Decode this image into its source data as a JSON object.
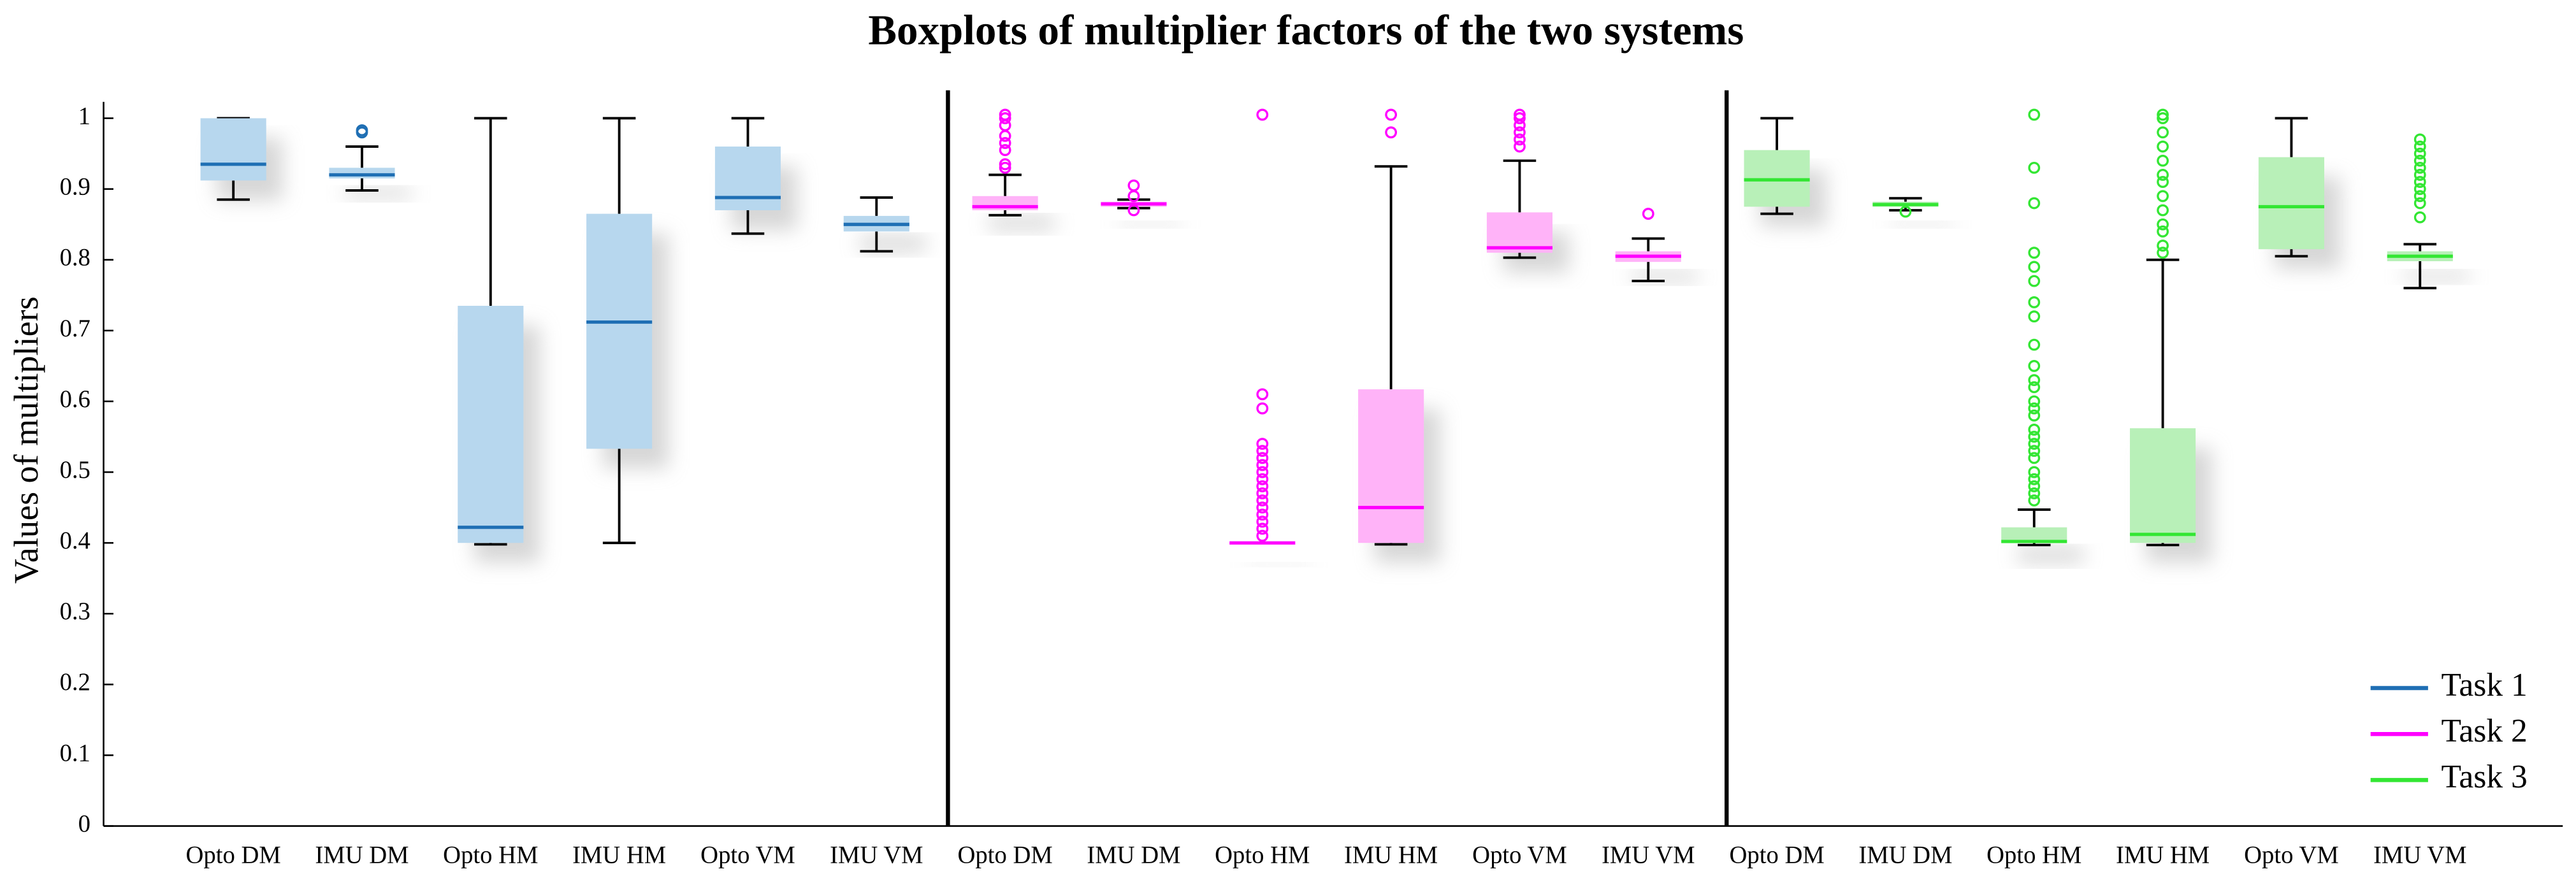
{
  "chart_data": {
    "type": "box",
    "title": "Boxplots of multiplier factors of the two systems",
    "ylabel": "Values of multipliers",
    "categories": [
      "Opto DM",
      "IMU DM",
      "Opto HM",
      "IMU HM",
      "Opto VM",
      "IMU VM",
      "Opto DM",
      "IMU DM",
      "Opto HM",
      "IMU HM",
      "Opto VM",
      "IMU VM",
      "Opto DM",
      "IMU DM",
      "Opto HM",
      "IMU HM",
      "Opto VM",
      "IMU VM"
    ],
    "ylim": [
      0,
      1
    ],
    "yticks": [
      0,
      0.1,
      0.2,
      0.3,
      0.4,
      0.5,
      0.6,
      0.7,
      0.8,
      0.9,
      1
    ],
    "legend": "lower right",
    "series": [
      {
        "name": "Task 1",
        "color": "#1f6fb4",
        "box_color": "#b7d7ee",
        "boxes": [
          {
            "min": 0.885,
            "q1": 0.912,
            "median": 0.935,
            "q3": 1.0,
            "max": 1.0,
            "outliers": []
          },
          {
            "min": 0.898,
            "q1": 0.915,
            "median": 0.92,
            "q3": 0.93,
            "max": 0.96,
            "outliers": [
              0.98,
              0.983
            ]
          },
          {
            "min": 0.398,
            "q1": 0.4,
            "median": 0.422,
            "q3": 0.735,
            "max": 1.0,
            "outliers": []
          },
          {
            "min": 0.4,
            "q1": 0.533,
            "median": 0.712,
            "q3": 0.865,
            "max": 1.0,
            "outliers": []
          },
          {
            "min": 0.837,
            "q1": 0.87,
            "median": 0.888,
            "q3": 0.96,
            "max": 1.0,
            "outliers": []
          },
          {
            "min": 0.812,
            "q1": 0.84,
            "median": 0.85,
            "q3": 0.862,
            "max": 0.888,
            "outliers": []
          }
        ]
      },
      {
        "name": "Task 2",
        "color": "#ff00ff",
        "box_color": "#ffb3f8",
        "boxes": [
          {
            "min": 0.863,
            "q1": 0.87,
            "median": 0.875,
            "q3": 0.89,
            "max": 0.92,
            "outliers": [
              0.93,
              0.935,
              0.955,
              0.965,
              0.975,
              0.99,
              1.0,
              1.005
            ]
          },
          {
            "min": 0.873,
            "q1": 0.875,
            "median": 0.879,
            "q3": 0.882,
            "max": 0.885,
            "outliers": [
              0.87,
              0.89,
              0.905
            ]
          },
          {
            "min": 0.4,
            "q1": 0.4,
            "median": 0.4,
            "q3": 0.4,
            "max": 0.4,
            "outliers": [
              0.41,
              0.42,
              0.43,
              0.44,
              0.45,
              0.46,
              0.47,
              0.48,
              0.49,
              0.5,
              0.51,
              0.52,
              0.53,
              0.54,
              0.59,
              0.61,
              1.005
            ]
          },
          {
            "min": 0.398,
            "q1": 0.4,
            "median": 0.45,
            "q3": 0.617,
            "max": 0.932,
            "outliers": [
              0.98,
              1.005
            ]
          },
          {
            "min": 0.803,
            "q1": 0.81,
            "median": 0.817,
            "q3": 0.867,
            "max": 0.94,
            "outliers": [
              0.96,
              0.97,
              0.98,
              0.99,
              1.0,
              1.005
            ]
          },
          {
            "min": 0.77,
            "q1": 0.797,
            "median": 0.805,
            "q3": 0.812,
            "max": 0.83,
            "outliers": [
              0.865
            ]
          }
        ]
      },
      {
        "name": "Task 3",
        "color": "#33e633",
        "box_color": "#b8f0b8",
        "boxes": [
          {
            "min": 0.865,
            "q1": 0.875,
            "median": 0.913,
            "q3": 0.955,
            "max": 1.0,
            "outliers": []
          },
          {
            "min": 0.87,
            "q1": 0.875,
            "median": 0.878,
            "q3": 0.882,
            "max": 0.887,
            "outliers": [
              0.868
            ]
          },
          {
            "min": 0.397,
            "q1": 0.4,
            "median": 0.402,
            "q3": 0.422,
            "max": 0.447,
            "outliers": [
              0.46,
              0.47,
              0.48,
              0.49,
              0.5,
              0.52,
              0.53,
              0.54,
              0.55,
              0.56,
              0.58,
              0.59,
              0.6,
              0.62,
              0.63,
              0.65,
              0.68,
              0.72,
              0.74,
              0.77,
              0.79,
              0.81,
              0.88,
              0.93,
              1.005
            ]
          },
          {
            "min": 0.397,
            "q1": 0.4,
            "median": 0.412,
            "q3": 0.562,
            "max": 0.8,
            "outliers": [
              0.81,
              0.82,
              0.84,
              0.85,
              0.87,
              0.89,
              0.91,
              0.92,
              0.94,
              0.96,
              0.98,
              1.0,
              1.005
            ]
          },
          {
            "min": 0.805,
            "q1": 0.815,
            "median": 0.875,
            "q3": 0.945,
            "max": 1.0,
            "outliers": []
          },
          {
            "min": 0.76,
            "q1": 0.798,
            "median": 0.805,
            "q3": 0.812,
            "max": 0.822,
            "outliers": [
              0.86,
              0.88,
              0.89,
              0.9,
              0.91,
              0.92,
              0.93,
              0.94,
              0.95,
              0.96,
              0.97
            ]
          }
        ]
      }
    ]
  }
}
